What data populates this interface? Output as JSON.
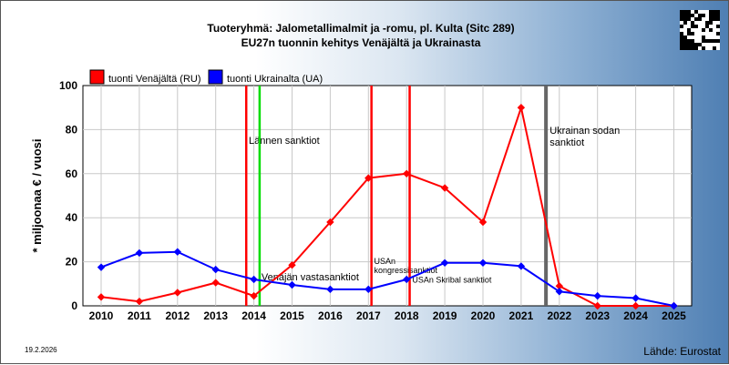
{
  "chart_data": {
    "type": "line",
    "title_line1": "Tuoteryhmä: Jalometallimalmit ja -romu, pl. Kulta (Sitc 289)",
    "title_line2": "EU27n tuonnin kehitys  Venäjältä ja Ukrainasta",
    "ylabel": "* miljoonaa € / vuosi",
    "categories": [
      "2010",
      "2011",
      "2012",
      "2013",
      "2014",
      "2015",
      "2016",
      "2017",
      "2018",
      "2019",
      "2020",
      "2021",
      "2022",
      "2023",
      "2024",
      "2025"
    ],
    "ylim": [
      0,
      100
    ],
    "yticks": [
      "0",
      "20",
      "40",
      "60",
      "80",
      "100"
    ],
    "grid": true,
    "legend_position": "top-left",
    "series": [
      {
        "name": "tuonti Venäjältä (RU)",
        "color": "#ff0000",
        "values": [
          4,
          2,
          6,
          10.5,
          4.5,
          18.5,
          38,
          58,
          60,
          53.5,
          38,
          90,
          9,
          0,
          0,
          0
        ]
      },
      {
        "name": "tuonti Ukrainalta (UA)",
        "color": "#0000ff",
        "values": [
          17.5,
          24,
          24.5,
          16.5,
          12,
          9.5,
          7.5,
          7.5,
          12,
          19.5,
          19.5,
          18,
          6.5,
          4.5,
          3.5,
          0
        ]
      }
    ],
    "annotations": [
      {
        "text": "Lännen sanktiot",
        "color": "#ff0000",
        "x": 2013.8,
        "label_x": 2013.82,
        "label_y": 73.5,
        "size": "normal"
      },
      {
        "text": "",
        "color": "#00dd00",
        "x": 2014.15
      },
      {
        "text": "Venäjän vastasanktiot",
        "color": "",
        "x": 2014.15,
        "label_x": 2014.15,
        "label_y": 11.5,
        "size": "normal"
      },
      {
        "text": "USAn kongressisanktiot",
        "color": "#ff0000",
        "x": 2017.08,
        "label_x": 2017.1,
        "label_y": 19,
        "size": "small",
        "lines": [
          "USAn",
          "kongressisanktiot"
        ]
      },
      {
        "text": "USAn Skribal sanktiot",
        "color": "#ff0000",
        "x": 2018.08,
        "label_x": 2018.1,
        "label_y": 10.5,
        "size": "small"
      },
      {
        "text": "Ukrainan sodan sanktiot",
        "color": "#666666",
        "x": 2021.65,
        "label_x": 2021.7,
        "label_y": 78,
        "size": "normal",
        "lines": [
          "Ukrainan sodan",
          "sanktiot"
        ]
      }
    ]
  },
  "footer": {
    "date": "19.2.2026",
    "source": "Lähde: Eurostat"
  },
  "qr": {
    "icon": "qr-code-icon"
  }
}
